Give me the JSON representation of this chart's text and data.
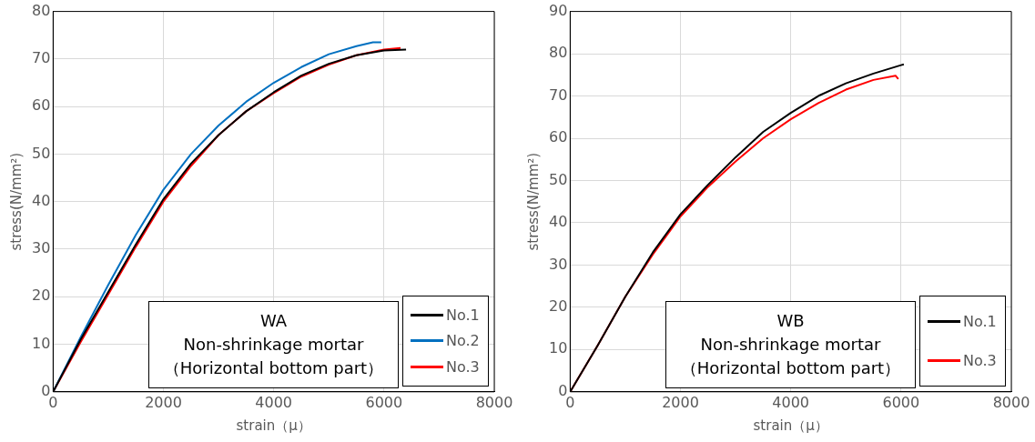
{
  "chart_data": [
    {
      "type": "line",
      "xlabel": "strain（μ）",
      "ylabel": "stress(N/mm²)",
      "xlim": [
        0,
        8000
      ],
      "xticks": [
        0,
        2000,
        4000,
        6000,
        8000
      ],
      "ylim": [
        0,
        80
      ],
      "yticks": [
        0,
        10,
        20,
        30,
        40,
        50,
        60,
        70,
        80
      ],
      "grid": true,
      "legend": "bottom right",
      "marker": "none",
      "line_style": "solid",
      "annotations": [
        "WA",
        "Non-shrinkage mortar",
        "（Horizontal bottom part）"
      ],
      "series": [
        {
          "name": "No.1",
          "color": "#000000",
          "x": [
            0,
            500,
            1000,
            1500,
            2000,
            2500,
            3000,
            3500,
            4000,
            4500,
            5000,
            5500,
            6000,
            6400
          ],
          "values": [
            0,
            11,
            21,
            31,
            40.5,
            48,
            54,
            59,
            63,
            66.5,
            69,
            70.8,
            71.8,
            72
          ]
        },
        {
          "name": "No.2",
          "color": "#0070c0",
          "x": [
            0,
            500,
            1000,
            1500,
            2000,
            2500,
            3000,
            3500,
            4000,
            4500,
            5000,
            5500,
            5800,
            5950
          ],
          "values": [
            0,
            11.5,
            22.5,
            33,
            42.5,
            50,
            56,
            61,
            65,
            68.3,
            71,
            72.7,
            73.5,
            73.5
          ]
        },
        {
          "name": "No.3",
          "color": "#ff0000",
          "x": [
            0,
            500,
            1000,
            1500,
            2000,
            2500,
            3000,
            3500,
            4000,
            4500,
            5000,
            5500,
            6000,
            6300
          ],
          "values": [
            0,
            10.5,
            20.5,
            30.5,
            40,
            47.5,
            54,
            59,
            62.8,
            66.3,
            68.8,
            70.8,
            72,
            72.3
          ]
        }
      ]
    },
    {
      "type": "line",
      "xlabel": "strain（μ）",
      "ylabel": "stress(N/mm²)",
      "xlim": [
        0,
        8000
      ],
      "xticks": [
        0,
        2000,
        4000,
        6000,
        8000
      ],
      "ylim": [
        0,
        90
      ],
      "yticks": [
        0,
        10,
        20,
        30,
        40,
        50,
        60,
        70,
        80,
        90
      ],
      "grid": true,
      "legend": "bottom right",
      "marker": "none",
      "line_style": "solid",
      "annotations": [
        "WB",
        "Non-shrinkage mortar",
        "（Horizontal bottom part）"
      ],
      "series": [
        {
          "name": "No.1",
          "color": "#000000",
          "x": [
            0,
            500,
            1000,
            1500,
            2000,
            2500,
            3000,
            3500,
            4000,
            4500,
            5000,
            5500,
            6000,
            6050
          ],
          "values": [
            0,
            11,
            22.5,
            33,
            42,
            49,
            55.5,
            61.5,
            66,
            70,
            73,
            75.3,
            77.3,
            77.5
          ]
        },
        {
          "name": "No.3",
          "color": "#ff0000",
          "x": [
            0,
            500,
            1000,
            1500,
            2000,
            2500,
            3000,
            3500,
            4000,
            4500,
            5000,
            5500,
            5900,
            5950
          ],
          "values": [
            0,
            11,
            22.5,
            32.5,
            41.5,
            48.5,
            54.5,
            60,
            64.5,
            68.3,
            71.5,
            73.8,
            74.8,
            74
          ]
        }
      ]
    }
  ]
}
